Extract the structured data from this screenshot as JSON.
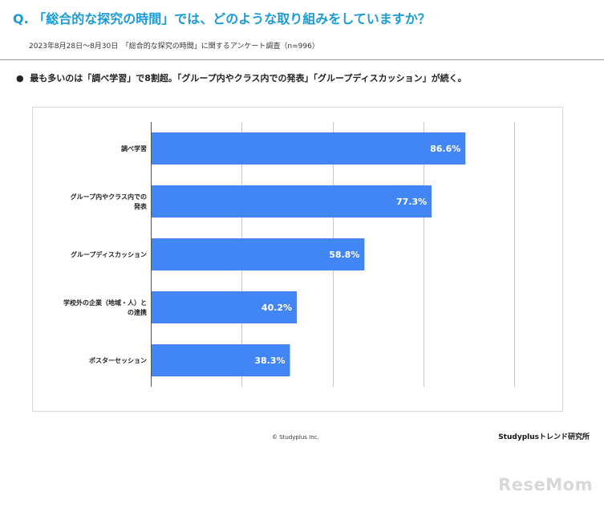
{
  "header": {
    "question": "Q. 「総合的な探究の時間」では、どのような取り組みをしていますか？",
    "survey_note": "2023年8月28日～8月30日　「総合的な探究の時間」に関するアンケート調査（n=996）"
  },
  "summary": {
    "bullet": "●",
    "text": "最も多いのは「調べ学習」で8割超。「グループ内やクラス内での発表」「グループディスカッション」が続く。"
  },
  "chart_data": {
    "type": "bar",
    "orientation": "horizontal",
    "categories": [
      [
        "調べ学習"
      ],
      [
        "グループ内やクラス内での",
        "発表"
      ],
      [
        "グループディスカッション"
      ],
      [
        "学校外の企業（地域・人）と",
        "の連携"
      ],
      [
        "ポスターセッション"
      ]
    ],
    "values": [
      86.6,
      77.3,
      58.8,
      40.2,
      38.3
    ],
    "value_labels": [
      "86.6%",
      "77.3%",
      "58.8%",
      "40.2%",
      "38.3%"
    ],
    "xlim": [
      0,
      100
    ],
    "grid": true,
    "bar_color": "#4285f4",
    "label_color": "#ffffff"
  },
  "footer": {
    "copyright": "© Studyplus Inc.",
    "brand": "Studyplusトレンド研究所",
    "logo": "ReseMom"
  }
}
